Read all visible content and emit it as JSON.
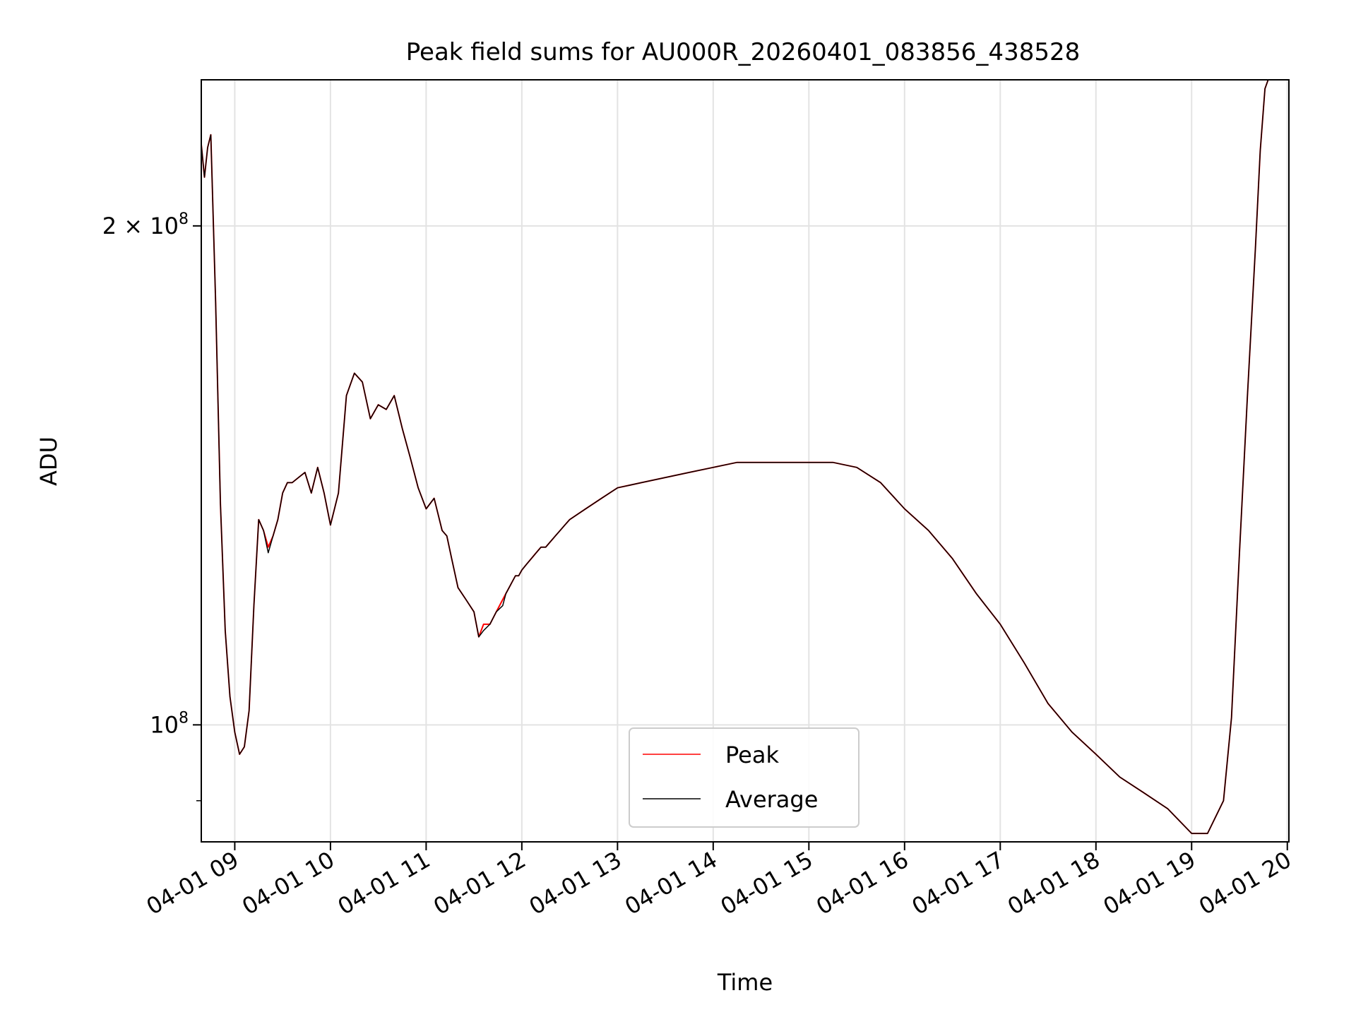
{
  "chart_data": {
    "type": "line",
    "title": "Peak field sums for AU000R_20260401_083856_438528",
    "xlabel": "Time",
    "ylabel": "ADU",
    "yscale": "log",
    "xlim": [
      "2026-04-01 08:39",
      "2026-04-01 20:01"
    ],
    "ylim": [
      85000000,
      245000000
    ],
    "grid": true,
    "legend_position": "lower center",
    "x_ticks": [
      "2026-04-01 09:00",
      "2026-04-01 10:00",
      "2026-04-01 11:00",
      "2026-04-01 12:00",
      "2026-04-01 13:00",
      "2026-04-01 14:00",
      "2026-04-01 15:00",
      "2026-04-01 16:00",
      "2026-04-01 17:00",
      "2026-04-01 18:00",
      "2026-04-01 19:00",
      "2026-04-01 20:00"
    ],
    "x_tick_labels": [
      "04-01 09",
      "04-01 10",
      "04-01 11",
      "04-01 12",
      "04-01 13",
      "04-01 14",
      "04-01 15",
      "04-01 16",
      "04-01 17",
      "04-01 18",
      "04-01 19",
      "04-01 20"
    ],
    "y_ticks": [
      100000000,
      200000000
    ],
    "y_tick_labels": [
      {
        "base": "10",
        "exp": "8",
        "mult": ""
      },
      {
        "base": "10",
        "exp": "8",
        "mult": "2 × "
      }
    ],
    "times": [
      "08:39",
      "08:41",
      "08:43",
      "08:45",
      "08:48",
      "08:51",
      "08:54",
      "08:57",
      "09:00",
      "09:03",
      "09:06",
      "09:09",
      "09:12",
      "09:15",
      "09:18",
      "09:21",
      "09:24",
      "09:27",
      "09:30",
      "09:33",
      "09:36",
      "09:40",
      "09:44",
      "09:48",
      "09:52",
      "09:56",
      "10:00",
      "10:05",
      "10:10",
      "10:15",
      "10:20",
      "10:25",
      "10:30",
      "10:35",
      "10:40",
      "10:45",
      "10:50",
      "10:55",
      "11:00",
      "11:05",
      "11:10",
      "11:13",
      "11:16",
      "11:20",
      "11:25",
      "11:30",
      "11:33",
      "11:36",
      "11:40",
      "11:44",
      "11:48",
      "11:50",
      "11:52",
      "11:54",
      "11:56",
      "11:58",
      "12:00",
      "12:03",
      "12:06",
      "12:09",
      "12:12",
      "12:15",
      "12:18",
      "12:21",
      "12:24",
      "12:27",
      "12:30",
      "12:40",
      "12:50",
      "13:00",
      "13:15",
      "13:30",
      "13:45",
      "14:00",
      "14:15",
      "14:30",
      "14:45",
      "15:00",
      "15:15",
      "15:30",
      "15:45",
      "16:00",
      "16:15",
      "16:30",
      "16:45",
      "17:00",
      "17:15",
      "17:30",
      "17:45",
      "18:00",
      "18:15",
      "18:30",
      "18:45",
      "19:00",
      "19:10",
      "19:20",
      "19:25",
      "19:30",
      "19:35",
      "19:40",
      "19:43",
      "19:46",
      "19:48",
      "19:50",
      "19:52",
      "19:55",
      "20:00"
    ],
    "series": [
      {
        "name": "Peak",
        "color": "#ff0000",
        "values": [
          224000000,
          214000000,
          223000000,
          227000000,
          180000000,
          136000000,
          114000000,
          104000000,
          99000000,
          96000000,
          97000000,
          102000000,
          118000000,
          133000000,
          131000000,
          128000000,
          130000000,
          133000000,
          138000000,
          140000000,
          140000000,
          141000000,
          142000000,
          138000000,
          143000000,
          138000000,
          132000000,
          138000000,
          158000000,
          163000000,
          161000000,
          153000000,
          156000000,
          155000000,
          158000000,
          151000000,
          145000000,
          139000000,
          135000000,
          137000000,
          131000000,
          130000000,
          126000000,
          121000000,
          119000000,
          117000000,
          113000000,
          115000000,
          115000000,
          117000000,
          119000000,
          120000000,
          121000000,
          122000000,
          123000000,
          123000000,
          124000000,
          125000000,
          126000000,
          127000000,
          128000000,
          128000000,
          129000000,
          130000000,
          131000000,
          132000000,
          133000000,
          135000000,
          137000000,
          139000000,
          140000000,
          141000000,
          142000000,
          143000000,
          144000000,
          144000000,
          144000000,
          144000000,
          144000000,
          143000000,
          140000000,
          135000000,
          131000000,
          126000000,
          120000000,
          115000000,
          109000000,
          103000000,
          99000000,
          96000000,
          93000000,
          91000000,
          89000000,
          86000000,
          86000000,
          90000000,
          101000000,
          127000000,
          158000000,
          194000000,
          222000000,
          242000000,
          245000000,
          245000000,
          245000000,
          245000000,
          245000000
        ]
      },
      {
        "name": "Average",
        "color": "#000000",
        "values": [
          224000000,
          214000000,
          223000000,
          227000000,
          180000000,
          136000000,
          114000000,
          104000000,
          99000000,
          96000000,
          97000000,
          102000000,
          118000000,
          133000000,
          131000000,
          127000000,
          130000000,
          133000000,
          138000000,
          140000000,
          140000000,
          141000000,
          142000000,
          138000000,
          143000000,
          138000000,
          132000000,
          138000000,
          158000000,
          163000000,
          161000000,
          153000000,
          156000000,
          155000000,
          158000000,
          151000000,
          145000000,
          139000000,
          135000000,
          137000000,
          131000000,
          130000000,
          126000000,
          121000000,
          119000000,
          117000000,
          113000000,
          114000000,
          115000000,
          117000000,
          118000000,
          120000000,
          121000000,
          122000000,
          123000000,
          123000000,
          124000000,
          125000000,
          126000000,
          127000000,
          128000000,
          128000000,
          129000000,
          130000000,
          131000000,
          132000000,
          133000000,
          135000000,
          137000000,
          139000000,
          140000000,
          141000000,
          142000000,
          143000000,
          144000000,
          144000000,
          144000000,
          144000000,
          144000000,
          143000000,
          140000000,
          135000000,
          131000000,
          126000000,
          120000000,
          115000000,
          109000000,
          103000000,
          99000000,
          96000000,
          93000000,
          91000000,
          89000000,
          86000000,
          86000000,
          90000000,
          101000000,
          127000000,
          158000000,
          194000000,
          222000000,
          242000000,
          245000000,
          245000000,
          245000000,
          245000000,
          245000000
        ]
      }
    ]
  }
}
